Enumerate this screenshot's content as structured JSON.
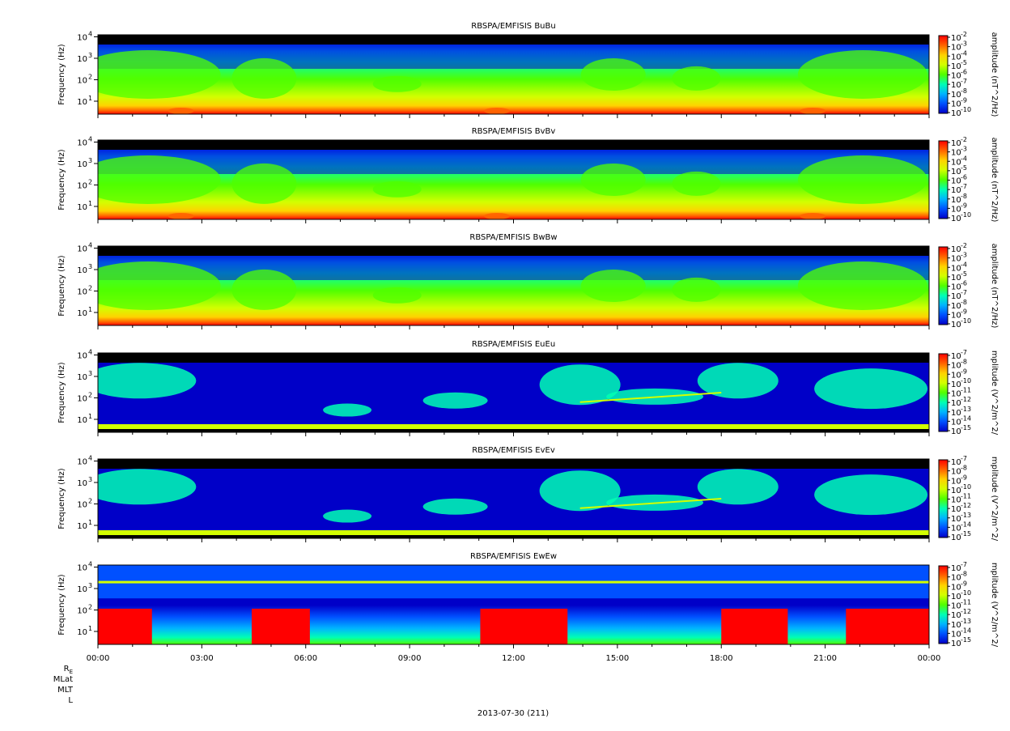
{
  "date_label": "2013-07-30 (211)",
  "ephemeris_labels": [
    "R",
    "MLat",
    "MLT",
    "L"
  ],
  "ephemeris_subscript": "E",
  "x_ticks": [
    "00:00",
    "03:00",
    "06:00",
    "09:00",
    "12:00",
    "15:00",
    "18:00",
    "21:00",
    "00:00"
  ],
  "palette": [
    "#0000c8",
    "#0050ff",
    "#00b4ff",
    "#00ffb4",
    "#50ff00",
    "#d2ff00",
    "#ffd200",
    "#ff6400",
    "#ff0000"
  ],
  "background_color": "#000000",
  "chart_data": [
    {
      "type": "heatmap",
      "title": "RBSPA/EMFISIS  BuBu",
      "ylabel": "Frequency (Hz)",
      "y_scale": "log",
      "y_ticks": [
        "1",
        "2",
        "3",
        "4"
      ],
      "zlabel": "amplitude (nT^2/Hz)",
      "z_scale": "log",
      "z_ticks": [
        "-2",
        "-3",
        "-4",
        "-5",
        "-6",
        "-7",
        "-8",
        "-9",
        "-10"
      ],
      "x": [
        "00:00",
        "24:00"
      ]
    },
    {
      "type": "heatmap",
      "title": "RBSPA/EMFISIS  BvBv",
      "ylabel": "Frequency (Hz)",
      "y_scale": "log",
      "y_ticks": [
        "1",
        "2",
        "3",
        "4"
      ],
      "zlabel": "amplitude (nT^2/Hz)",
      "z_scale": "log",
      "z_ticks": [
        "-2",
        "-3",
        "-4",
        "-5",
        "-6",
        "-7",
        "-8",
        "-9",
        "-10"
      ],
      "x": [
        "00:00",
        "24:00"
      ]
    },
    {
      "type": "heatmap",
      "title": "RBSPA/EMFISIS  BwBw",
      "ylabel": "Frequency (Hz)",
      "y_scale": "log",
      "y_ticks": [
        "1",
        "2",
        "3",
        "4"
      ],
      "zlabel": "amplitude (nT^2/Hz)",
      "z_scale": "log",
      "z_ticks": [
        "-2",
        "-3",
        "-4",
        "-5",
        "-6",
        "-7",
        "-8",
        "-9",
        "-10"
      ],
      "x": [
        "00:00",
        "24:00"
      ]
    },
    {
      "type": "heatmap",
      "title": "RBSPA/EMFISIS  EuEu",
      "ylabel": "Frequency (Hz)",
      "y_scale": "log",
      "y_ticks": [
        "1",
        "2",
        "3",
        "4"
      ],
      "zlabel": "mplitude (V^2/m^2/",
      "z_scale": "log",
      "z_ticks": [
        "-7",
        "-8",
        "-9",
        "-10",
        "-11",
        "-12",
        "-13",
        "-14",
        "-15"
      ],
      "x": [
        "00:00",
        "24:00"
      ]
    },
    {
      "type": "heatmap",
      "title": "RBSPA/EMFISIS  EvEv",
      "ylabel": "Frequency (Hz)",
      "y_scale": "log",
      "y_ticks": [
        "1",
        "2",
        "3",
        "4"
      ],
      "zlabel": "mplitude (V^2/m^2/",
      "z_scale": "log",
      "z_ticks": [
        "-7",
        "-8",
        "-9",
        "-10",
        "-11",
        "-12",
        "-13",
        "-14",
        "-15"
      ],
      "x": [
        "00:00",
        "24:00"
      ]
    },
    {
      "type": "heatmap",
      "title": "RBSPA/EMFISIS  EwEw",
      "ylabel": "Frequency (Hz)",
      "y_scale": "log",
      "y_ticks": [
        "1",
        "2",
        "3",
        "4"
      ],
      "zlabel": "mplitude (V^2/m^2/",
      "z_scale": "log",
      "z_ticks": [
        "-7",
        "-8",
        "-9",
        "-10",
        "-11",
        "-12",
        "-13",
        "-14",
        "-15"
      ],
      "x": [
        "00:00",
        "24:00"
      ]
    }
  ]
}
